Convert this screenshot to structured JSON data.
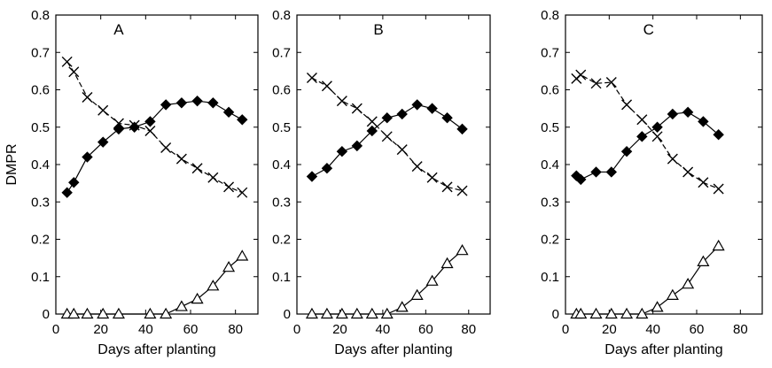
{
  "chart_data": [
    {
      "type": "line",
      "title": "A",
      "xlabel": "Days after planting",
      "ylabel": "DMPR",
      "xlim": [
        0,
        90
      ],
      "ylim": [
        0,
        0.8
      ],
      "x_ticks": [
        "0",
        "20",
        "40",
        "60",
        "80"
      ],
      "y_ticks": [
        "0",
        "0.1",
        "0.2",
        "0.3",
        "0.4",
        "0.5",
        "0.6",
        "0.7",
        "0.8"
      ],
      "grid": false,
      "series": [
        {
          "marker": "filled-diamond",
          "line": "solid",
          "x": [
            5,
            8,
            14,
            21,
            28,
            35,
            42,
            49,
            56,
            63,
            70,
            77,
            83
          ],
          "y": [
            0.325,
            0.352,
            0.42,
            0.46,
            0.495,
            0.5,
            0.515,
            0.56,
            0.565,
            0.57,
            0.565,
            0.54,
            0.52
          ]
        },
        {
          "marker": "cross",
          "line": "dashed",
          "x": [
            5,
            8,
            14,
            21,
            28,
            35,
            42,
            49,
            56,
            63,
            70,
            77,
            83
          ],
          "y": [
            0.675,
            0.648,
            0.58,
            0.545,
            0.51,
            0.505,
            0.49,
            0.445,
            0.415,
            0.39,
            0.365,
            0.34,
            0.325
          ]
        },
        {
          "marker": "open-triangle",
          "line": "solid",
          "x": [
            5,
            8,
            14,
            21,
            28,
            42,
            49,
            56,
            63,
            70,
            77,
            83
          ],
          "y": [
            0,
            0,
            0,
            0,
            0,
            0,
            0,
            0.02,
            0.04,
            0.075,
            0.125,
            0.155
          ]
        }
      ]
    },
    {
      "type": "line",
      "title": "B",
      "xlabel": "Days after planting",
      "ylabel": "",
      "xlim": [
        0,
        90
      ],
      "ylim": [
        0,
        0.8
      ],
      "x_ticks": [
        "0",
        "20",
        "40",
        "60",
        "80"
      ],
      "y_ticks": [
        "0",
        "0.1",
        "0.2",
        "0.3",
        "0.4",
        "0.5",
        "0.6",
        "0.7",
        "0.8"
      ],
      "grid": false,
      "series": [
        {
          "marker": "filled-diamond",
          "line": "solid",
          "x": [
            7,
            14,
            21,
            28,
            35,
            42,
            49,
            56,
            63,
            70,
            77
          ],
          "y": [
            0.368,
            0.39,
            0.435,
            0.45,
            0.49,
            0.525,
            0.535,
            0.56,
            0.55,
            0.525,
            0.495
          ]
        },
        {
          "marker": "cross",
          "line": "dashed",
          "x": [
            7,
            14,
            21,
            28,
            35,
            42,
            49,
            56,
            63,
            70,
            77
          ],
          "y": [
            0.632,
            0.61,
            0.57,
            0.55,
            0.515,
            0.475,
            0.44,
            0.395,
            0.365,
            0.34,
            0.33
          ]
        },
        {
          "marker": "open-triangle",
          "line": "solid",
          "x": [
            7,
            14,
            21,
            28,
            35,
            42,
            49,
            56,
            63,
            70,
            77
          ],
          "y": [
            0,
            0,
            0,
            0,
            0,
            0,
            0.018,
            0.05,
            0.088,
            0.135,
            0.17
          ]
        }
      ]
    },
    {
      "type": "line",
      "title": "C",
      "xlabel": "Days after planting",
      "ylabel": "",
      "xlim": [
        0,
        90
      ],
      "ylim": [
        0,
        0.8
      ],
      "x_ticks": [
        "0",
        "20",
        "40",
        "60",
        "80"
      ],
      "y_ticks": [
        "0",
        "0.1",
        "0.2",
        "0.3",
        "0.4",
        "0.5",
        "0.6",
        "0.7",
        "0.8"
      ],
      "grid": false,
      "series": [
        {
          "marker": "filled-diamond",
          "line": "solid",
          "x": [
            5,
            7,
            14,
            21,
            28,
            35,
            42,
            49,
            56,
            63,
            70
          ],
          "y": [
            0.37,
            0.36,
            0.38,
            0.38,
            0.435,
            0.475,
            0.5,
            0.535,
            0.54,
            0.515,
            0.48
          ]
        },
        {
          "marker": "cross",
          "line": "dashed",
          "x": [
            5,
            7,
            14,
            21,
            28,
            35,
            42,
            49,
            56,
            63,
            70
          ],
          "y": [
            0.63,
            0.64,
            0.617,
            0.62,
            0.56,
            0.52,
            0.475,
            0.415,
            0.38,
            0.352,
            0.335
          ]
        },
        {
          "marker": "open-triangle",
          "line": "solid",
          "x": [
            5,
            7,
            14,
            21,
            28,
            35,
            42,
            49,
            56,
            63,
            70
          ],
          "y": [
            0,
            0,
            0,
            0,
            0,
            0,
            0.018,
            0.05,
            0.08,
            0.14,
            0.182
          ]
        }
      ]
    }
  ]
}
